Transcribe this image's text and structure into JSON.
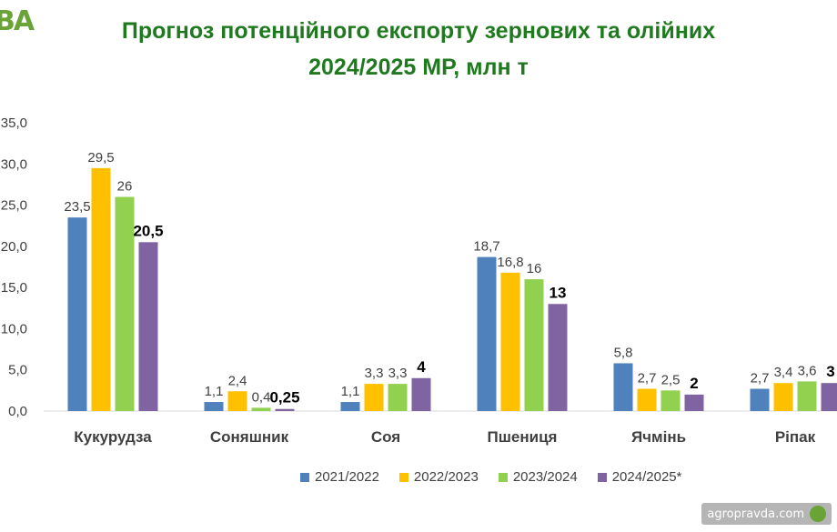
{
  "header": {
    "logo_text": "BA",
    "title_line1": "Прогноз потенційного експорту зернових та олійних",
    "title_line2": "2024/2025 МР, млн т"
  },
  "watermark": {
    "text": "agropravda.com"
  },
  "chart_data": {
    "type": "bar",
    "categories": [
      "Кукурудза",
      "Соняшник",
      "Соя",
      "Пшениця",
      "Ячмінь",
      "Ріпак"
    ],
    "series": [
      {
        "name": "2021/2022",
        "color": "#4f81bd",
        "values": [
          23.5,
          1.1,
          1.1,
          18.7,
          5.8,
          2.7
        ],
        "labels": [
          "23,5",
          "1,1",
          "1,1",
          "18,7",
          "5,8",
          "2,7"
        ]
      },
      {
        "name": "2022/2023",
        "color": "#ffc000",
        "values": [
          29.5,
          2.4,
          3.3,
          16.8,
          2.7,
          3.4
        ],
        "labels": [
          "29,5",
          "2,4",
          "3,3",
          "16,8",
          "2,7",
          "3,4"
        ]
      },
      {
        "name": "2023/2024",
        "color": "#92d050",
        "values": [
          26,
          0.4,
          3.3,
          16,
          2.5,
          3.6
        ],
        "labels": [
          "26",
          "0,4",
          "3,3",
          "16",
          "2,5",
          "3,6"
        ]
      },
      {
        "name": "2024/2025*",
        "color": "#8064a2",
        "values": [
          20.5,
          0.25,
          4,
          13,
          2,
          3.4
        ],
        "labels": [
          "20,5",
          "0,25",
          "4",
          "13",
          "2",
          "3"
        ]
      }
    ],
    "ylim": [
      0,
      35
    ],
    "yticks": [
      "0,0",
      "5,0",
      "10,0",
      "15,0",
      "20,0",
      "25,0",
      "30,0",
      "35,0"
    ],
    "grid": false,
    "legend": "bottom"
  }
}
